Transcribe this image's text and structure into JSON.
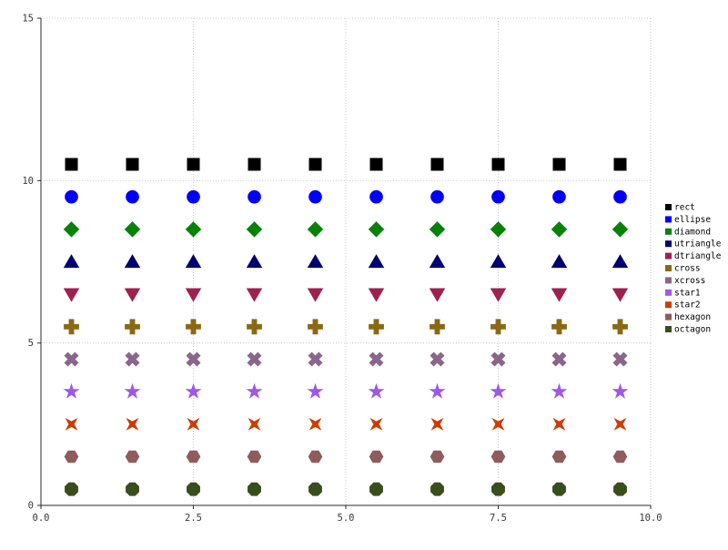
{
  "chart_data": {
    "type": "scatter",
    "title": "",
    "xlabel": "",
    "ylabel": "",
    "x": [
      0.5,
      1.5,
      2.5,
      3.5,
      4.5,
      5.5,
      6.5,
      7.5,
      8.5,
      9.5
    ],
    "series": [
      {
        "name": "rect",
        "shape": "rect",
        "color": "#000000",
        "y": 10.5
      },
      {
        "name": "ellipse",
        "shape": "ellipse",
        "color": "#0000fa",
        "y": 9.5
      },
      {
        "name": "diamond",
        "shape": "diamond",
        "color": "#078207",
        "y": 8.5
      },
      {
        "name": "utriangle",
        "shape": "utriangle",
        "color": "#000070",
        "y": 7.5
      },
      {
        "name": "dtriangle",
        "shape": "dtriangle",
        "color": "#a02050",
        "y": 6.5
      },
      {
        "name": "cross",
        "shape": "cross",
        "color": "#8b6914",
        "y": 5.5
      },
      {
        "name": "xcross",
        "shape": "xcross",
        "color": "#8b668b",
        "y": 4.5
      },
      {
        "name": "star1",
        "shape": "star1",
        "color": "#9c59e8",
        "y": 3.5
      },
      {
        "name": "star2",
        "shape": "star2",
        "color": "#cc3d02",
        "y": 2.5
      },
      {
        "name": "hexagon",
        "shape": "hexagon",
        "color": "#8e5c5c",
        "y": 1.5
      },
      {
        "name": "octagon",
        "shape": "octagon",
        "color": "#3a4d1c",
        "y": 0.5
      }
    ],
    "xlim": [
      0,
      10
    ],
    "ylim": [
      0,
      15
    ],
    "xticks": [
      0,
      2.5,
      5,
      7.5,
      10
    ],
    "xtick_labels": [
      "0.0",
      "2.5",
      "5.0",
      "7.5",
      "10.0"
    ],
    "yticks": [
      0,
      5,
      10,
      15
    ],
    "ytick_labels": [
      "0",
      "5",
      "10",
      "15"
    ],
    "grid": true,
    "grid_style": "dotted",
    "grid_color": "#c9c9c9",
    "axis_color": "#2a2a2a",
    "legend_position": "right",
    "legend_entries": [
      "rect",
      "ellipse",
      "diamond",
      "utriangle",
      "dtriangle",
      "cross",
      "xcross",
      "star1",
      "star2",
      "hexagon",
      "octagon"
    ]
  }
}
